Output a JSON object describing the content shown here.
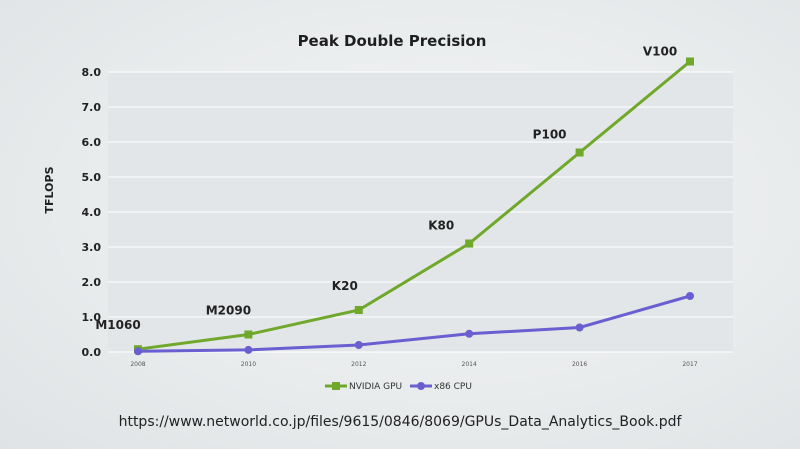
{
  "source_url": "https://www.networld.co.jp/files/9615/0846/8069/GPUs_Data_Analytics_Book.pdf",
  "chart_data": {
    "type": "line",
    "title": "Peak Double Precision",
    "ylabel": "TFLOPS",
    "xlabel": "",
    "ylim": [
      0,
      8
    ],
    "yticks": [
      "0.0",
      "1.0",
      "2.0",
      "3.0",
      "4.0",
      "5.0",
      "6.0",
      "7.0",
      "8.0"
    ],
    "x": [
      "2008",
      "2010",
      "2012",
      "2014",
      "2016",
      "2017"
    ],
    "grid": true,
    "legend_position": "bottom",
    "series": [
      {
        "name": "NVIDIA GPU",
        "color": "#6fa82a",
        "values": [
          0.08,
          0.5,
          1.2,
          3.1,
          5.7,
          8.3
        ],
        "point_labels": [
          "M1060",
          "M2090",
          "K20",
          "K80",
          "P100",
          "V100"
        ]
      },
      {
        "name": "x86 CPU",
        "color": "#6a5fd0",
        "values": [
          0.02,
          0.06,
          0.2,
          0.52,
          0.7,
          1.6
        ]
      }
    ]
  }
}
